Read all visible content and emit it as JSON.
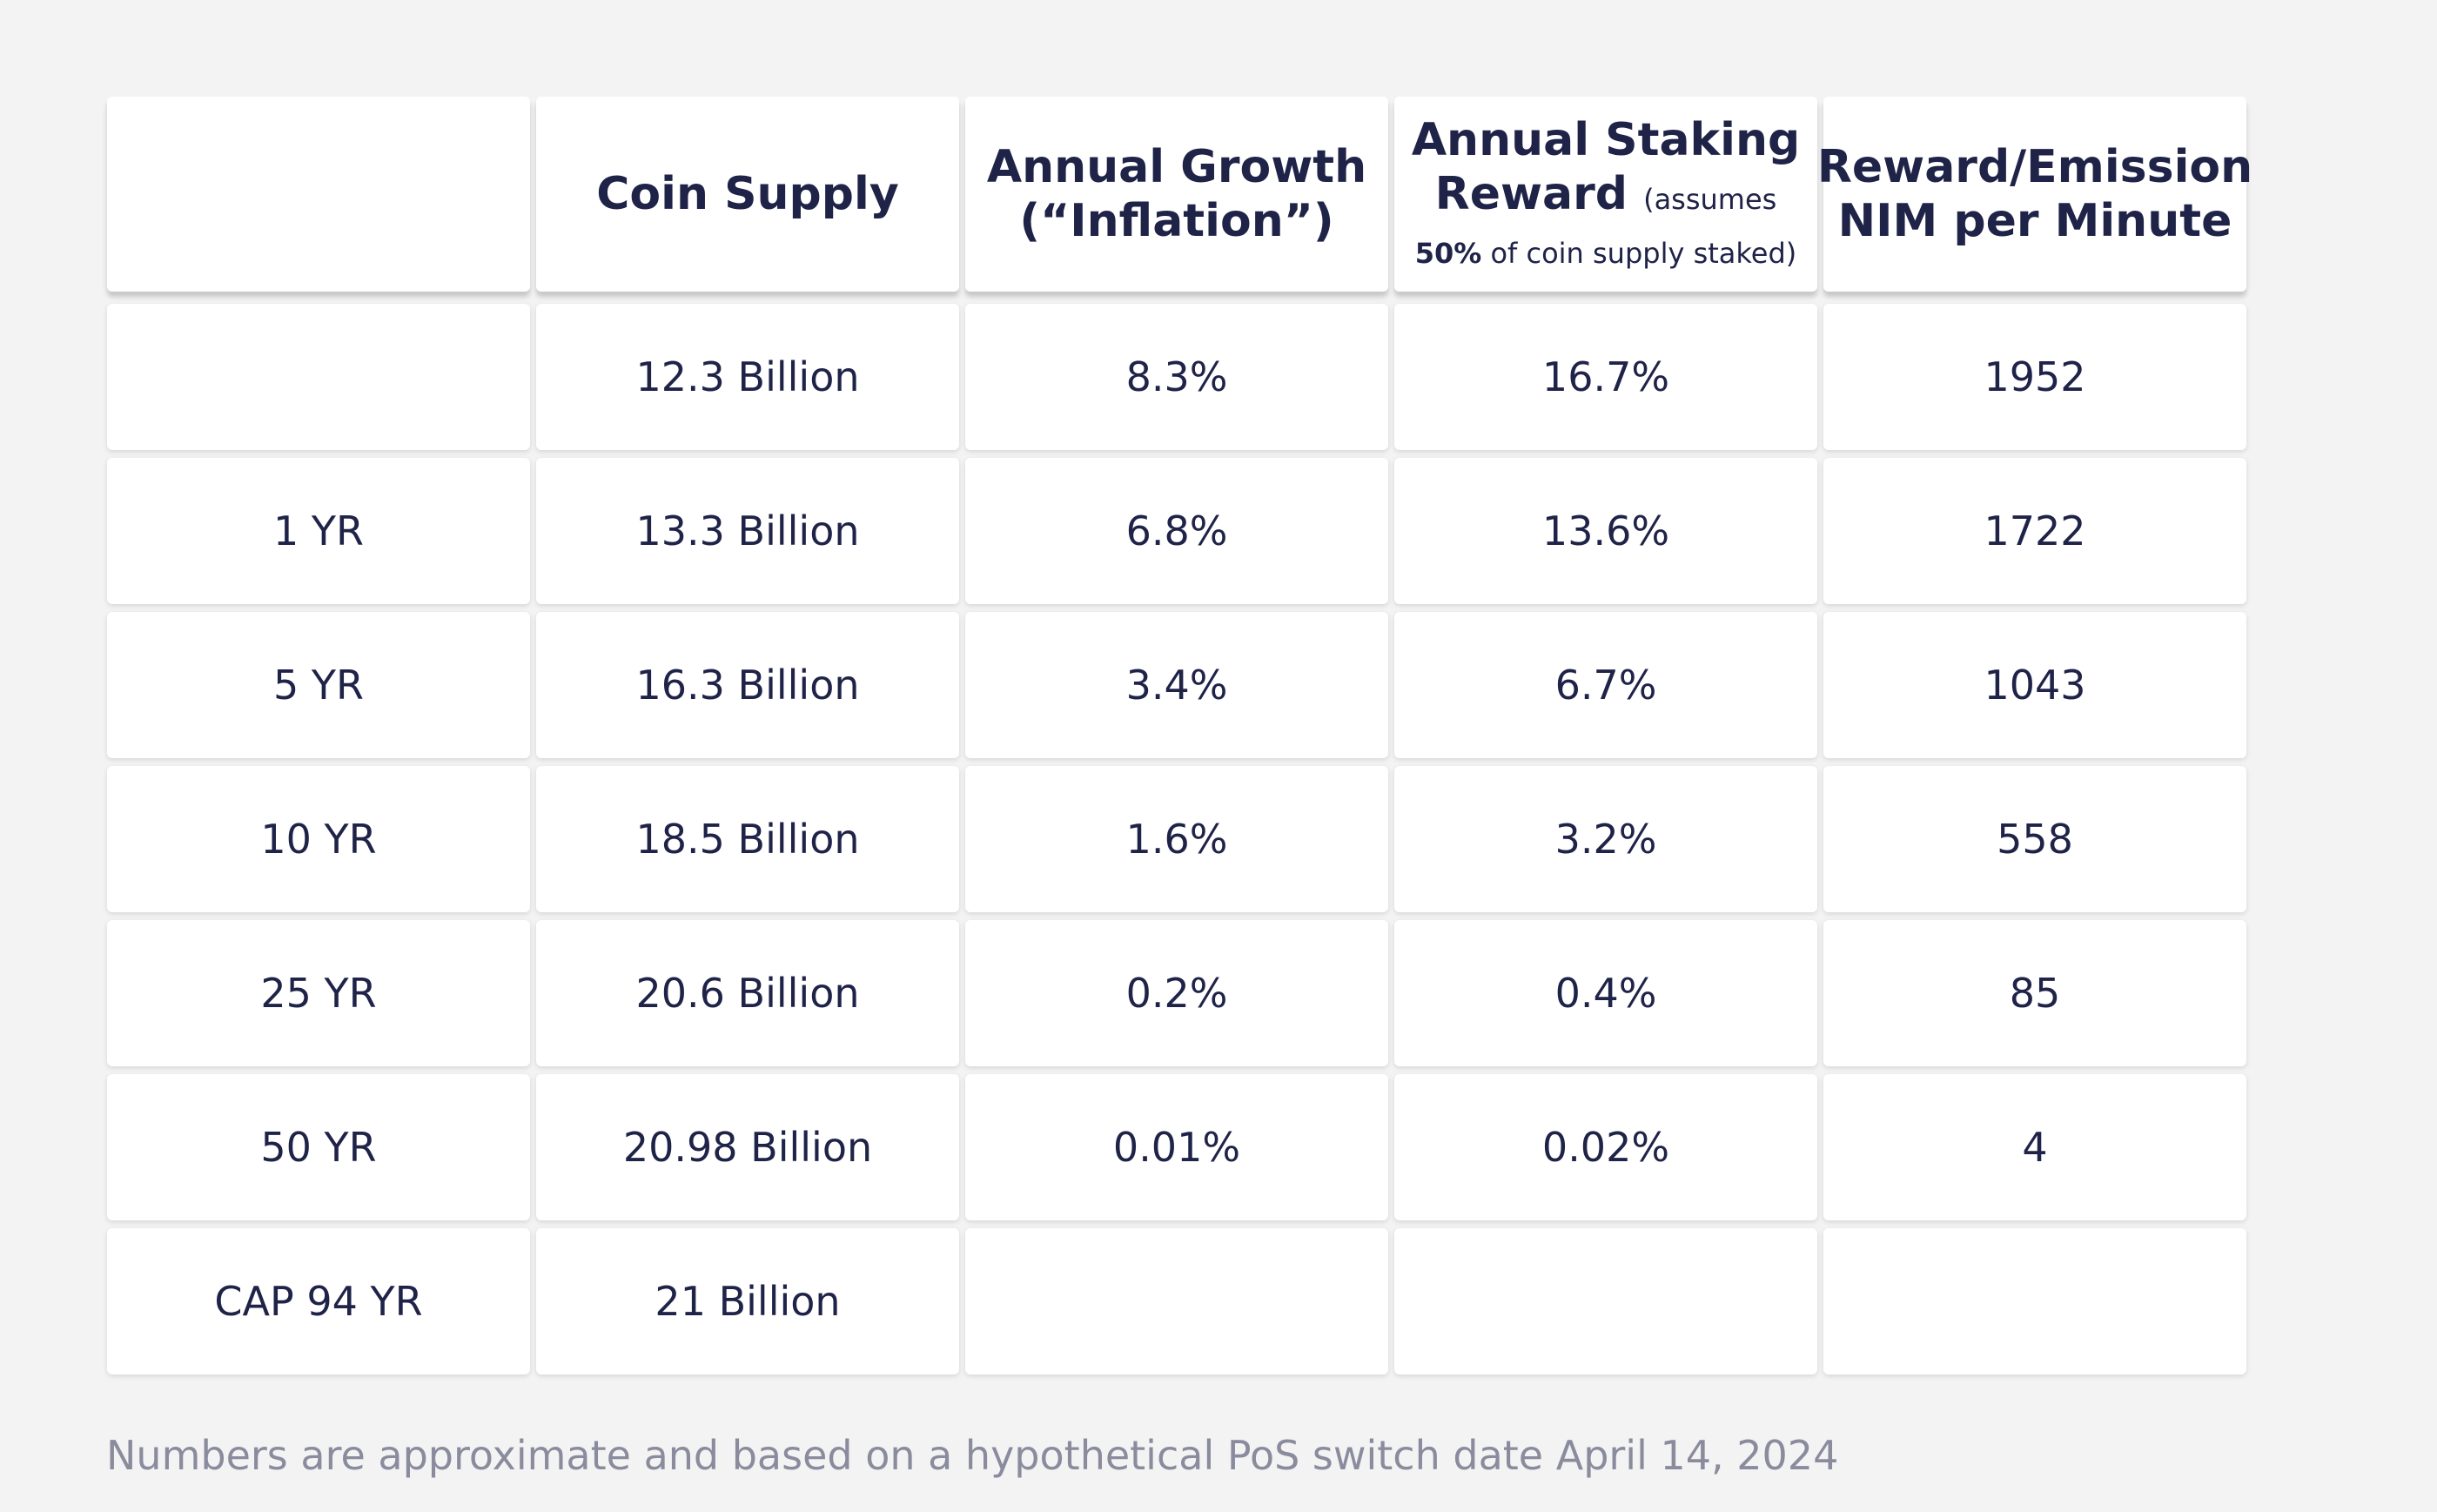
{
  "table": {
    "header": [
      null,
      "Coin Supply",
      "Annual Growth (“Inflation”)",
      {
        "title": "Annual Staking Reward",
        "note_before": "(assumes",
        "note_bold": "50%",
        "note_after": "of coin supply staked)"
      },
      "Reward/Emission NIM per Minute"
    ],
    "rows": [
      [
        null,
        "12.3 Billion",
        "8.3%",
        "16.7%",
        "1952"
      ],
      [
        "1 YR",
        "13.3 Billion",
        "6.8%",
        "13.6%",
        "1722"
      ],
      [
        "5 YR",
        "16.3 Billion",
        "3.4%",
        "6.7%",
        "1043"
      ],
      [
        "10 YR",
        "18.5 Billion",
        "1.6%",
        "3.2%",
        "558"
      ],
      [
        "25 YR",
        "20.6 Billion",
        "0.2%",
        "0.4%",
        "85"
      ],
      [
        "50 YR",
        "20.98 Billion",
        "0.01%",
        "0.02%",
        "4"
      ],
      [
        "CAP 94 YR",
        "21 Billion",
        null,
        null,
        null
      ]
    ]
  },
  "footnote": "Numbers are approximate and based on a hypothetical PoS switch date April 14, 2024"
}
